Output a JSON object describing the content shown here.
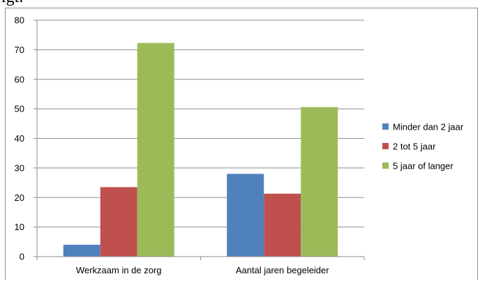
{
  "header": {
    "fragment": "lgt."
  },
  "colors": {
    "series1": "#4f81bd",
    "series2": "#c0504d",
    "series3": "#9bbb59",
    "grid": "#8c8c8c"
  },
  "chart_data": {
    "type": "bar",
    "categories": [
      "Werkzaam in de zorg",
      "Aantal jaren begeleider"
    ],
    "series": [
      {
        "name": "Minder dan 2 jaar",
        "values": [
          4,
          28
        ]
      },
      {
        "name": "2 tot 5 jaar",
        "values": [
          23.5,
          21.3
        ]
      },
      {
        "name": "5 jaar of langer",
        "values": [
          72.3,
          50.6
        ]
      }
    ],
    "ylim": [
      0,
      80
    ],
    "yticks": [
      0,
      10,
      20,
      30,
      40,
      50,
      60,
      70,
      80
    ],
    "grid": true,
    "legend": "right",
    "title": "",
    "xlabel": "",
    "ylabel": ""
  }
}
